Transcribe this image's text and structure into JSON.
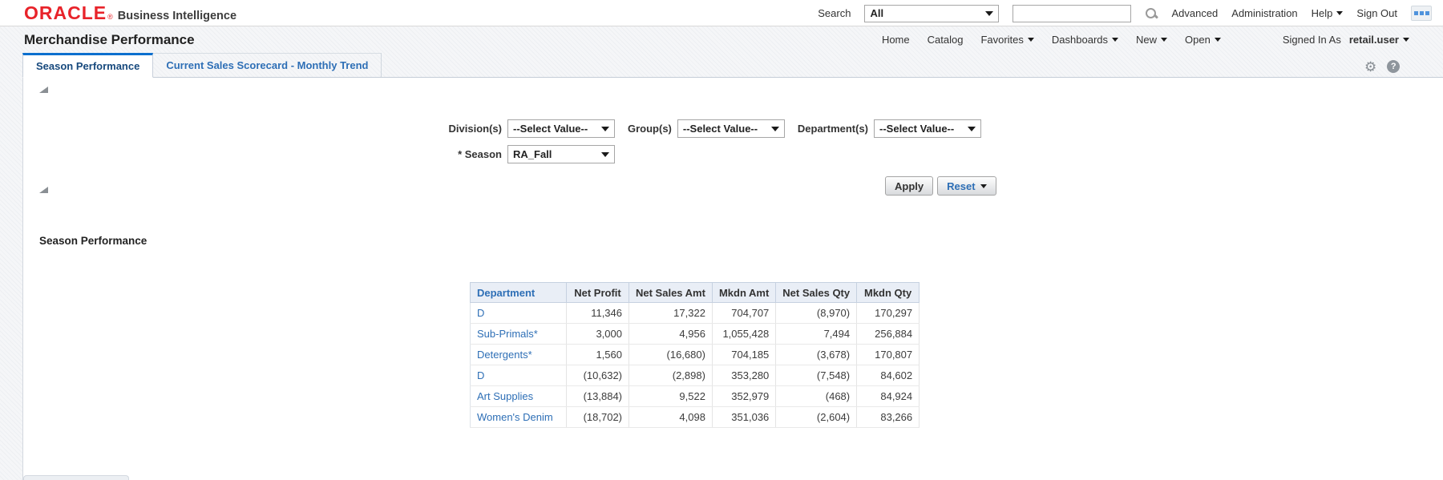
{
  "topbar": {
    "logo": "ORACLE",
    "logo_registered": "®",
    "product": "Business Intelligence",
    "search_label": "Search",
    "search_scope_value": "All",
    "search_input_value": "",
    "advanced": "Advanced",
    "administration": "Administration",
    "help": "Help",
    "sign_out": "Sign Out"
  },
  "header": {
    "page_title": "Merchandise Performance",
    "nav": {
      "home": "Home",
      "catalog": "Catalog",
      "favorites": "Favorites",
      "dashboards": "Dashboards",
      "new": "New",
      "open": "Open"
    },
    "signed_in_as": "Signed In As",
    "user": "retail.user"
  },
  "tabs": {
    "active": "Season Performance",
    "inactive": "Current Sales Scorecard - Monthly Trend"
  },
  "icons": {
    "gear_glyph": "⚙",
    "help_glyph": "?"
  },
  "filters": {
    "division_label": "Division(s)",
    "division_value": "--Select Value--",
    "group_label": "Group(s)",
    "group_value": "--Select Value--",
    "department_label": "Department(s)",
    "department_value": "--Select Value--",
    "season_label": "* Season",
    "season_value": "RA_Fall",
    "apply": "Apply",
    "reset": "Reset"
  },
  "section_title": "Season Performance",
  "table": {
    "columns": [
      "Department",
      "Net Profit",
      "Net Sales Amt",
      "Mkdn Amt",
      "Net Sales Qty",
      "Mkdn Qty"
    ],
    "rows": [
      [
        "D",
        "11,346",
        "17,322",
        "704,707",
        "(8,970)",
        "170,297"
      ],
      [
        "Sub-Primals*",
        "3,000",
        "4,956",
        "1,055,428",
        "7,494",
        "256,884"
      ],
      [
        "Detergents*",
        "1,560",
        "(16,680)",
        "704,185",
        "(3,678)",
        "170,807"
      ],
      [
        "D",
        "(10,632)",
        "(2,898)",
        "353,280",
        "(7,548)",
        "84,602"
      ],
      [
        "Art Supplies",
        "(13,884)",
        "9,522",
        "352,979",
        "(468)",
        "84,924"
      ],
      [
        "Women's Denim",
        "(18,702)",
        "4,098",
        "351,036",
        "(2,604)",
        "83,266"
      ]
    ]
  },
  "colors": {
    "oracle_red": "#e8232a",
    "link_blue": "#2e6fb6",
    "tab_active_border": "#0c6fce",
    "table_header_bg": "#e9eef6"
  }
}
